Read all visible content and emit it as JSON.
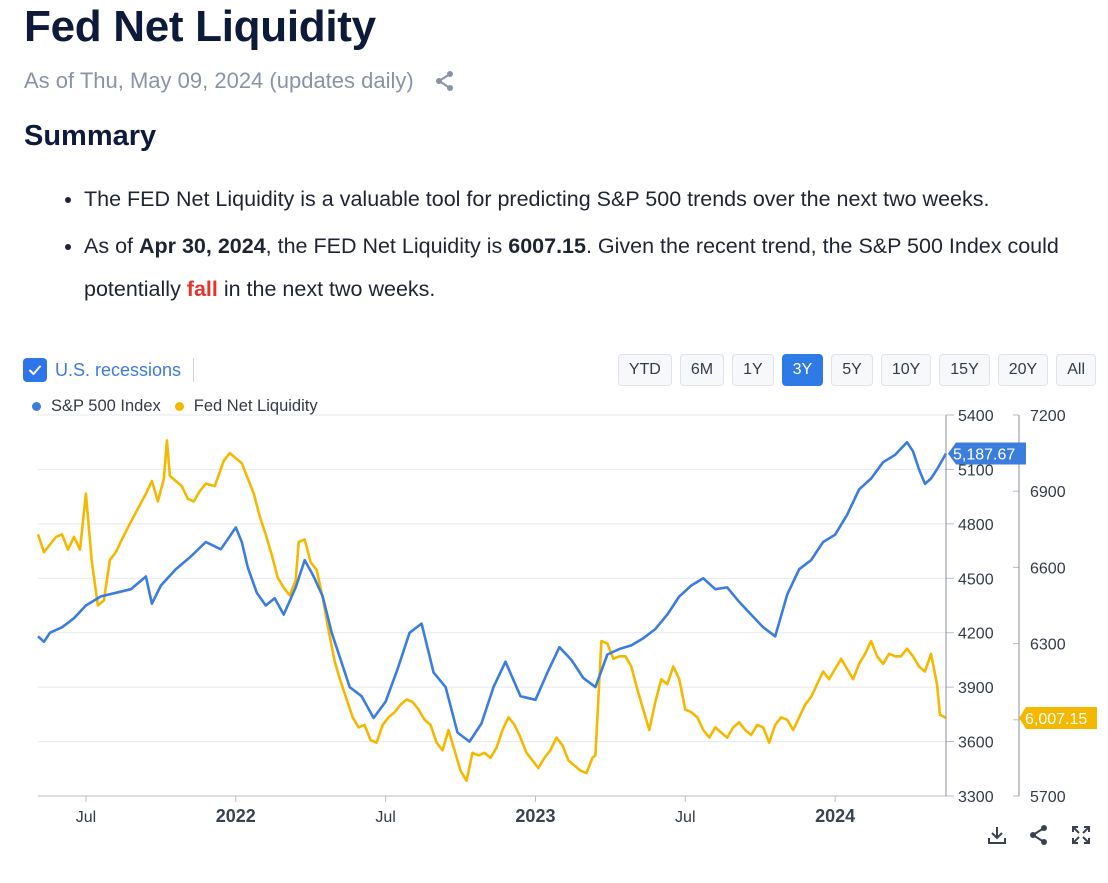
{
  "page": {
    "title": "Fed Net Liquidity",
    "as_of": "As of Thu, May 09, 2024 (updates daily)",
    "summary_heading": "Summary"
  },
  "summary": {
    "bullet1": "The FED Net Liquidity is a valuable tool for predicting S&P 500 trends over the next two weeks.",
    "b2_pre": "As of ",
    "b2_date": "Apr 30, 2024",
    "b2_mid": ", the FED Net Liquidity is ",
    "b2_value": "6007.15",
    "b2_post": ". Given the recent trend, the S&P 500 Index could potentially ",
    "b2_fall": "fall",
    "b2_end": " in the next two weeks."
  },
  "controls": {
    "recessions_label": "U.S. recessions",
    "ranges": [
      "YTD",
      "6M",
      "1Y",
      "3Y",
      "5Y",
      "10Y",
      "15Y",
      "20Y",
      "All"
    ],
    "active_range": "3Y"
  },
  "colors": {
    "sp500": "#3b7ddd",
    "liquidity": "#f5b800",
    "active": "#2f7be5",
    "fall": "#e5352b"
  },
  "chart_data": {
    "type": "line",
    "legend": [
      "S&P 500 Index",
      "Fed Net Liquidity"
    ],
    "x_ticks": [
      {
        "label": "Jul",
        "t": 2021.5,
        "bold": false
      },
      {
        "label": "2022",
        "t": 2022.0,
        "bold": true
      },
      {
        "label": "Jul",
        "t": 2022.5,
        "bold": false
      },
      {
        "label": "2023",
        "t": 2023.0,
        "bold": true
      },
      {
        "label": "Jul",
        "t": 2023.5,
        "bold": false
      },
      {
        "label": "2024",
        "t": 2024.0,
        "bold": true
      }
    ],
    "x_range": [
      2021.34,
      2024.37
    ],
    "y_left": {
      "ticks": [
        "5400",
        "5100",
        "4800",
        "4500",
        "4200",
        "3900",
        "3600",
        "3300"
      ],
      "range": [
        3300,
        5400
      ]
    },
    "y_right": {
      "ticks": [
        "7200",
        "6900",
        "6600",
        "6300",
        "6000",
        "5700"
      ],
      "range": [
        5700,
        7200
      ]
    },
    "series": [
      {
        "name": "S&P 500 Index",
        "axis": "left",
        "last_label": "5,187.67",
        "points": [
          [
            2021.34,
            4180
          ],
          [
            2021.36,
            4150
          ],
          [
            2021.38,
            4200
          ],
          [
            2021.42,
            4230
          ],
          [
            2021.46,
            4280
          ],
          [
            2021.5,
            4350
          ],
          [
            2021.55,
            4400
          ],
          [
            2021.6,
            4420
          ],
          [
            2021.65,
            4440
          ],
          [
            2021.7,
            4510
          ],
          [
            2021.72,
            4360
          ],
          [
            2021.75,
            4460
          ],
          [
            2021.8,
            4550
          ],
          [
            2021.85,
            4620
          ],
          [
            2021.9,
            4700
          ],
          [
            2021.95,
            4660
          ],
          [
            2022.0,
            4780
          ],
          [
            2022.02,
            4700
          ],
          [
            2022.04,
            4560
          ],
          [
            2022.07,
            4420
          ],
          [
            2022.1,
            4350
          ],
          [
            2022.13,
            4390
          ],
          [
            2022.16,
            4300
          ],
          [
            2022.2,
            4450
          ],
          [
            2022.23,
            4600
          ],
          [
            2022.26,
            4510
          ],
          [
            2022.29,
            4400
          ],
          [
            2022.32,
            4200
          ],
          [
            2022.35,
            4050
          ],
          [
            2022.38,
            3900
          ],
          [
            2022.42,
            3850
          ],
          [
            2022.46,
            3730
          ],
          [
            2022.5,
            3820
          ],
          [
            2022.54,
            4000
          ],
          [
            2022.58,
            4200
          ],
          [
            2022.62,
            4250
          ],
          [
            2022.66,
            3980
          ],
          [
            2022.7,
            3900
          ],
          [
            2022.74,
            3650
          ],
          [
            2022.78,
            3600
          ],
          [
            2022.82,
            3700
          ],
          [
            2022.86,
            3900
          ],
          [
            2022.9,
            4040
          ],
          [
            2022.95,
            3850
          ],
          [
            2023.0,
            3830
          ],
          [
            2023.04,
            3980
          ],
          [
            2023.08,
            4120
          ],
          [
            2023.12,
            4050
          ],
          [
            2023.16,
            3950
          ],
          [
            2023.2,
            3900
          ],
          [
            2023.24,
            4080
          ],
          [
            2023.28,
            4110
          ],
          [
            2023.32,
            4130
          ],
          [
            2023.36,
            4170
          ],
          [
            2023.4,
            4220
          ],
          [
            2023.44,
            4300
          ],
          [
            2023.48,
            4400
          ],
          [
            2023.52,
            4460
          ],
          [
            2023.56,
            4500
          ],
          [
            2023.6,
            4440
          ],
          [
            2023.64,
            4450
          ],
          [
            2023.68,
            4370
          ],
          [
            2023.72,
            4300
          ],
          [
            2023.76,
            4230
          ],
          [
            2023.8,
            4180
          ],
          [
            2023.84,
            4410
          ],
          [
            2023.88,
            4550
          ],
          [
            2023.92,
            4600
          ],
          [
            2023.96,
            4700
          ],
          [
            2024.0,
            4740
          ],
          [
            2024.04,
            4850
          ],
          [
            2024.08,
            4990
          ],
          [
            2024.12,
            5050
          ],
          [
            2024.16,
            5140
          ],
          [
            2024.2,
            5180
          ],
          [
            2024.24,
            5250
          ],
          [
            2024.26,
            5200
          ],
          [
            2024.28,
            5100
          ],
          [
            2024.3,
            5020
          ],
          [
            2024.32,
            5050
          ],
          [
            2024.34,
            5100
          ],
          [
            2024.37,
            5187.67
          ]
        ]
      },
      {
        "name": "Fed Net Liquidity",
        "axis": "right",
        "last_label": "6,007.15",
        "points": [
          [
            2021.34,
            6730
          ],
          [
            2021.36,
            6660
          ],
          [
            2021.38,
            6690
          ],
          [
            2021.4,
            6720
          ],
          [
            2021.42,
            6730
          ],
          [
            2021.44,
            6670
          ],
          [
            2021.46,
            6720
          ],
          [
            2021.48,
            6670
          ],
          [
            2021.5,
            6890
          ],
          [
            2021.52,
            6620
          ],
          [
            2021.54,
            6450
          ],
          [
            2021.56,
            6470
          ],
          [
            2021.58,
            6630
          ],
          [
            2021.6,
            6660
          ],
          [
            2021.62,
            6710
          ],
          [
            2021.65,
            6780
          ],
          [
            2021.7,
            6890
          ],
          [
            2021.72,
            6940
          ],
          [
            2021.74,
            6860
          ],
          [
            2021.76,
            6950
          ],
          [
            2021.77,
            7100
          ],
          [
            2021.78,
            6960
          ],
          [
            2021.8,
            6940
          ],
          [
            2021.82,
            6920
          ],
          [
            2021.84,
            6870
          ],
          [
            2021.86,
            6860
          ],
          [
            2021.88,
            6900
          ],
          [
            2021.9,
            6930
          ],
          [
            2021.93,
            6920
          ],
          [
            2021.96,
            7020
          ],
          [
            2021.98,
            7050
          ],
          [
            2022.0,
            7030
          ],
          [
            2022.02,
            7010
          ],
          [
            2022.04,
            6950
          ],
          [
            2022.06,
            6890
          ],
          [
            2022.08,
            6800
          ],
          [
            2022.1,
            6730
          ],
          [
            2022.12,
            6650
          ],
          [
            2022.14,
            6560
          ],
          [
            2022.16,
            6520
          ],
          [
            2022.18,
            6490
          ],
          [
            2022.2,
            6550
          ],
          [
            2022.21,
            6700
          ],
          [
            2022.23,
            6710
          ],
          [
            2022.25,
            6620
          ],
          [
            2022.27,
            6590
          ],
          [
            2022.29,
            6480
          ],
          [
            2022.31,
            6350
          ],
          [
            2022.33,
            6230
          ],
          [
            2022.35,
            6150
          ],
          [
            2022.37,
            6080
          ],
          [
            2022.39,
            6010
          ],
          [
            2022.41,
            5970
          ],
          [
            2022.43,
            5980
          ],
          [
            2022.45,
            5920
          ],
          [
            2022.47,
            5910
          ],
          [
            2022.49,
            5980
          ],
          [
            2022.51,
            6010
          ],
          [
            2022.53,
            6030
          ],
          [
            2022.55,
            6060
          ],
          [
            2022.57,
            6080
          ],
          [
            2022.59,
            6070
          ],
          [
            2022.61,
            6040
          ],
          [
            2022.63,
            6000
          ],
          [
            2022.65,
            5980
          ],
          [
            2022.67,
            5910
          ],
          [
            2022.69,
            5880
          ],
          [
            2022.71,
            5960
          ],
          [
            2022.73,
            5880
          ],
          [
            2022.75,
            5800
          ],
          [
            2022.77,
            5760
          ],
          [
            2022.79,
            5870
          ],
          [
            2022.81,
            5860
          ],
          [
            2022.83,
            5870
          ],
          [
            2022.85,
            5850
          ],
          [
            2022.87,
            5890
          ],
          [
            2022.89,
            5960
          ],
          [
            2022.91,
            6010
          ],
          [
            2022.93,
            5980
          ],
          [
            2022.95,
            5930
          ],
          [
            2022.97,
            5870
          ],
          [
            2022.99,
            5840
          ],
          [
            2023.01,
            5810
          ],
          [
            2023.03,
            5850
          ],
          [
            2023.05,
            5880
          ],
          [
            2023.07,
            5930
          ],
          [
            2023.09,
            5900
          ],
          [
            2023.11,
            5840
          ],
          [
            2023.13,
            5820
          ],
          [
            2023.15,
            5800
          ],
          [
            2023.17,
            5790
          ],
          [
            2023.19,
            5850
          ],
          [
            2023.2,
            5860
          ],
          [
            2023.22,
            6310
          ],
          [
            2023.24,
            6300
          ],
          [
            2023.26,
            6240
          ],
          [
            2023.28,
            6250
          ],
          [
            2023.3,
            6250
          ],
          [
            2023.32,
            6210
          ],
          [
            2023.34,
            6120
          ],
          [
            2023.36,
            6040
          ],
          [
            2023.38,
            5960
          ],
          [
            2023.4,
            6070
          ],
          [
            2023.42,
            6160
          ],
          [
            2023.44,
            6140
          ],
          [
            2023.46,
            6210
          ],
          [
            2023.48,
            6160
          ],
          [
            2023.5,
            6040
          ],
          [
            2023.52,
            6030
          ],
          [
            2023.54,
            6010
          ],
          [
            2023.56,
            5960
          ],
          [
            2023.58,
            5930
          ],
          [
            2023.6,
            5970
          ],
          [
            2023.62,
            5950
          ],
          [
            2023.64,
            5930
          ],
          [
            2023.66,
            5970
          ],
          [
            2023.68,
            5990
          ],
          [
            2023.7,
            5960
          ],
          [
            2023.72,
            5940
          ],
          [
            2023.74,
            5980
          ],
          [
            2023.76,
            5970
          ],
          [
            2023.78,
            5910
          ],
          [
            2023.8,
            5980
          ],
          [
            2023.82,
            6010
          ],
          [
            2023.84,
            6000
          ],
          [
            2023.86,
            5960
          ],
          [
            2023.88,
            6010
          ],
          [
            2023.9,
            6060
          ],
          [
            2023.92,
            6090
          ],
          [
            2023.94,
            6140
          ],
          [
            2023.96,
            6190
          ],
          [
            2023.98,
            6160
          ],
          [
            2024.0,
            6200
          ],
          [
            2024.02,
            6240
          ],
          [
            2024.04,
            6200
          ],
          [
            2024.06,
            6160
          ],
          [
            2024.08,
            6220
          ],
          [
            2024.1,
            6260
          ],
          [
            2024.12,
            6310
          ],
          [
            2024.14,
            6250
          ],
          [
            2024.16,
            6220
          ],
          [
            2024.18,
            6260
          ],
          [
            2024.2,
            6250
          ],
          [
            2024.22,
            6250
          ],
          [
            2024.24,
            6280
          ],
          [
            2024.26,
            6250
          ],
          [
            2024.28,
            6210
          ],
          [
            2024.3,
            6190
          ],
          [
            2024.32,
            6260
          ],
          [
            2024.34,
            6140
          ],
          [
            2024.35,
            6020
          ],
          [
            2024.37,
            6007.15
          ]
        ]
      }
    ]
  }
}
